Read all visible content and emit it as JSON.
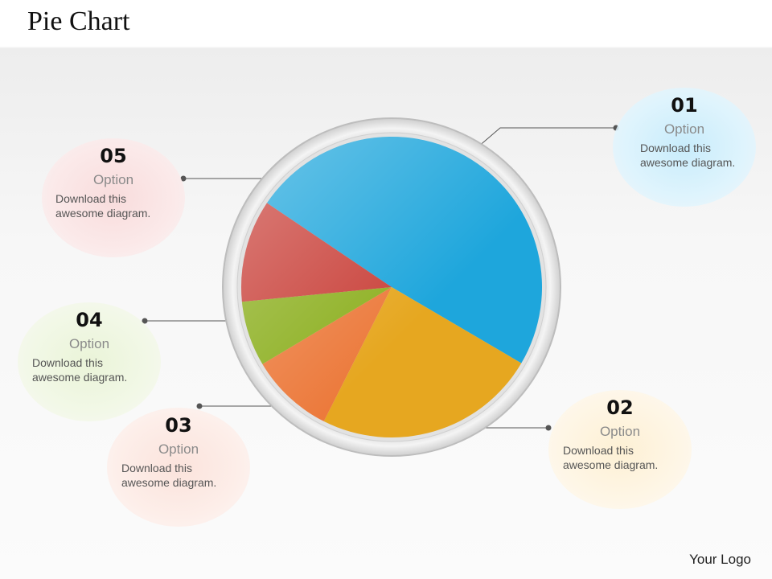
{
  "page": {
    "title": "Pie Chart",
    "logo": "Your Logo"
  },
  "chart_data": {
    "type": "pie",
    "title": "Pie Chart",
    "slices": [
      {
        "id": "01",
        "value": 49,
        "color": "#1ea6dc"
      },
      {
        "id": "02",
        "value": 24,
        "color": "#e6a720"
      },
      {
        "id": "03",
        "value": 9,
        "color": "#ec7a3c"
      },
      {
        "id": "04",
        "value": 7,
        "color": "#8db021"
      },
      {
        "id": "05",
        "value": 11,
        "color": "#c9413a"
      }
    ]
  },
  "options": [
    {
      "number": "01",
      "label": "Option",
      "desc_line1": "Download this",
      "desc_line2": "awesome diagram."
    },
    {
      "number": "02",
      "label": "Option",
      "desc_line1": "Download this",
      "desc_line2": "awesome diagram."
    },
    {
      "number": "03",
      "label": "Option",
      "desc_line1": "Download this",
      "desc_line2": "awesome diagram."
    },
    {
      "number": "04",
      "label": "Option",
      "desc_line1": "Download this",
      "desc_line2": "awesome diagram."
    },
    {
      "number": "05",
      "label": "Option",
      "desc_line1": "Download this",
      "desc_line2": "awesome diagram."
    }
  ]
}
